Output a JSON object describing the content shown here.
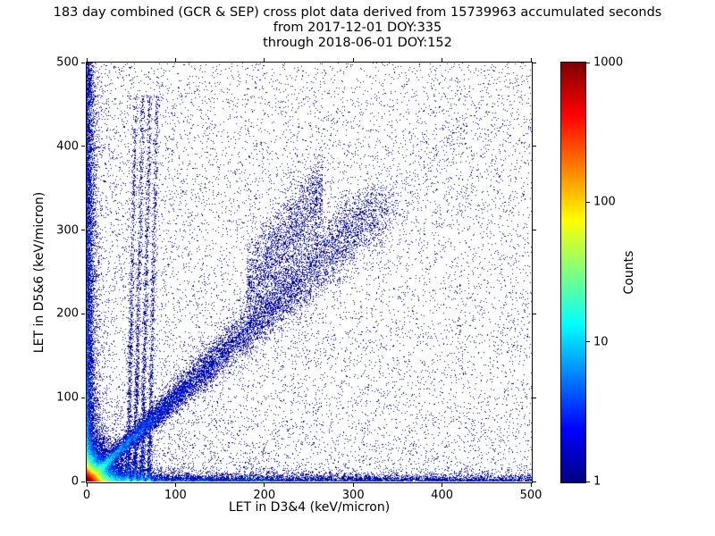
{
  "chart_data": {
    "type": "heatmap",
    "title_line1": "183 day combined (GCR & SEP) cross plot data derived from 15739963 accumulated seconds",
    "title_line2": "from 2017-12-01 DOY:335",
    "title_line3": "through 2018-06-01 DOY:152",
    "xlabel": "LET in D3&4 (keV/micron)",
    "ylabel": "LET in D5&6 (keV/micron)",
    "xlim": [
      0,
      500
    ],
    "ylim": [
      0,
      500
    ],
    "x_ticks": [
      0,
      100,
      200,
      300,
      400,
      500
    ],
    "y_ticks": [
      0,
      100,
      200,
      300,
      400,
      500
    ],
    "grid": false,
    "colorbar": {
      "label": "Counts",
      "scale": "log",
      "min": 1,
      "max": 1000,
      "ticks": [
        1000,
        100,
        10,
        1
      ],
      "tick_labels": [
        "1000",
        "100",
        "10",
        "1"
      ],
      "colormap": "jet",
      "color_min_hex": "#00007f",
      "color_max_hex": "#7f0000"
    },
    "seed": 20171201,
    "density_features": [
      {
        "name": "core-hotspot",
        "type": "exp2d",
        "n": 48000,
        "scale_x": 5,
        "scale_y": 5
      },
      {
        "name": "core-halo",
        "type": "exp2d",
        "n": 12000,
        "scale_x": 15,
        "scale_y": 15
      },
      {
        "name": "left-axis-band",
        "type": "edge_v",
        "n": 9000,
        "x_scale": 3.5,
        "y_pow": 1.8
      },
      {
        "name": "bottom-axis-band",
        "type": "edge_h",
        "n": 8000,
        "y_scale": 3.5,
        "x_pow": 1.8
      },
      {
        "name": "main-diagonal",
        "type": "diag",
        "n": 16000,
        "t_max": 330,
        "t_pow": 2.2,
        "spread_base": 1.5,
        "spread_rate": 0.05
      },
      {
        "name": "diagonal-sparse-extension",
        "type": "diag",
        "n": 900,
        "t_max": 490,
        "t_pow": 1.0,
        "spread_base": 12,
        "spread_rate": 0.04
      },
      {
        "name": "upper-diagonal-cloud",
        "type": "cloud",
        "n": 2200,
        "x_min": 180,
        "x_max": 265,
        "slope": 1.3,
        "y_offset": 0,
        "spread": 25
      },
      {
        "name": "vertical-striations",
        "type": "stripes",
        "n": 5200,
        "xs": [
          46,
          54,
          62,
          70
        ],
        "tilt": 0.02,
        "y_max": 460,
        "y_pow": 2.2,
        "sigma": 1.3
      },
      {
        "name": "background-scatter",
        "type": "uniform_bias",
        "n": 9000,
        "pow": 1.25
      },
      {
        "name": "sparse-uniform",
        "type": "uniform",
        "n": 2600
      }
    ]
  }
}
